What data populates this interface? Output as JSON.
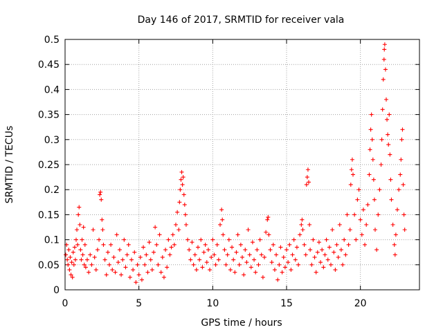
{
  "chart_data": {
    "type": "scatter",
    "title": "Day 146 of 2017, SRMTID for receiver vala",
    "xlabel": "GPS time / hours",
    "ylabel": "SRMTID / TECUs",
    "xlim": [
      0,
      24
    ],
    "ylim": [
      0,
      0.5
    ],
    "x_ticks": [
      0,
      5,
      10,
      15,
      20
    ],
    "x_tick_labels": [
      "0",
      "5",
      "10",
      "15",
      "20"
    ],
    "y_ticks": [
      0,
      0.05,
      0.1,
      0.15,
      0.2,
      0.25,
      0.3,
      0.35,
      0.4,
      0.45,
      0.5
    ],
    "y_tick_labels": [
      "0",
      "0.05",
      "0.1",
      "0.15",
      "0.2",
      "0.25",
      "0.3",
      "0.35",
      "0.4",
      "0.45",
      "0.5"
    ],
    "grid": true,
    "marker": "+",
    "color": "#ff0000",
    "series": [
      {
        "name": "SRMTID",
        "points": [
          [
            0.05,
            0.07
          ],
          [
            0.1,
            0.09
          ],
          [
            0.15,
            0.06
          ],
          [
            0.2,
            0.05
          ],
          [
            0.25,
            0.08
          ],
          [
            0.3,
            0.04
          ],
          [
            0.35,
            0.065
          ],
          [
            0.4,
            0.03
          ],
          [
            0.45,
            0.055
          ],
          [
            0.5,
            0.025
          ],
          [
            0.55,
            0.075
          ],
          [
            0.6,
            0.05
          ],
          [
            0.65,
            0.085
          ],
          [
            0.7,
            0.06
          ],
          [
            0.75,
            0.1
          ],
          [
            0.8,
            0.12
          ],
          [
            0.85,
            0.09
          ],
          [
            0.9,
            0.15
          ],
          [
            0.95,
            0.165
          ],
          [
            1.0,
            0.13
          ],
          [
            1.05,
            0.08
          ],
          [
            1.1,
            0.06
          ],
          [
            1.15,
            0.1
          ],
          [
            1.2,
            0.07
          ],
          [
            1.25,
            0.125
          ],
          [
            1.3,
            0.05
          ],
          [
            1.35,
            0.09
          ],
          [
            1.4,
            0.045
          ],
          [
            1.5,
            0.06
          ],
          [
            1.6,
            0.035
          ],
          [
            1.7,
            0.07
          ],
          [
            1.8,
            0.05
          ],
          [
            1.9,
            0.12
          ],
          [
            2.0,
            0.065
          ],
          [
            2.1,
            0.04
          ],
          [
            2.2,
            0.08
          ],
          [
            2.3,
            0.1
          ],
          [
            2.35,
            0.19
          ],
          [
            2.4,
            0.195
          ],
          [
            2.45,
            0.18
          ],
          [
            2.5,
            0.14
          ],
          [
            2.55,
            0.12
          ],
          [
            2.6,
            0.09
          ],
          [
            2.7,
            0.06
          ],
          [
            2.8,
            0.03
          ],
          [
            2.9,
            0.075
          ],
          [
            3.0,
            0.05
          ],
          [
            3.1,
            0.09
          ],
          [
            3.2,
            0.04
          ],
          [
            3.3,
            0.065
          ],
          [
            3.4,
            0.035
          ],
          [
            3.5,
            0.11
          ],
          [
            3.6,
            0.055
          ],
          [
            3.7,
            0.08
          ],
          [
            3.8,
            0.03
          ],
          [
            3.9,
            0.06
          ],
          [
            4.0,
            0.1
          ],
          [
            4.1,
            0.045
          ],
          [
            4.2,
            0.07
          ],
          [
            4.3,
            0.09
          ],
          [
            4.4,
            0.025
          ],
          [
            4.5,
            0.06
          ],
          [
            4.6,
            0.04
          ],
          [
            4.7,
            0.075
          ],
          [
            4.8,
            0.015
          ],
          [
            4.9,
            0.05
          ],
          [
            5.0,
            0.03
          ],
          [
            5.1,
            0.065
          ],
          [
            5.2,
            0.02
          ],
          [
            5.3,
            0.085
          ],
          [
            5.4,
            0.05
          ],
          [
            5.5,
            0.07
          ],
          [
            5.6,
            0.035
          ],
          [
            5.7,
            0.095
          ],
          [
            5.8,
            0.06
          ],
          [
            5.9,
            0.04
          ],
          [
            6.0,
            0.075
          ],
          [
            6.1,
            0.125
          ],
          [
            6.2,
            0.09
          ],
          [
            6.3,
            0.05
          ],
          [
            6.4,
            0.11
          ],
          [
            6.5,
            0.035
          ],
          [
            6.6,
            0.065
          ],
          [
            6.7,
            0.025
          ],
          [
            6.8,
            0.08
          ],
          [
            6.9,
            0.045
          ],
          [
            7.0,
            0.1
          ],
          [
            7.1,
            0.07
          ],
          [
            7.2,
            0.085
          ],
          [
            7.3,
            0.11
          ],
          [
            7.4,
            0.09
          ],
          [
            7.5,
            0.13
          ],
          [
            7.6,
            0.155
          ],
          [
            7.7,
            0.12
          ],
          [
            7.75,
            0.175
          ],
          [
            7.8,
            0.2
          ],
          [
            7.85,
            0.22
          ],
          [
            7.9,
            0.235
          ],
          [
            7.95,
            0.21
          ],
          [
            8.0,
            0.225
          ],
          [
            8.05,
            0.19
          ],
          [
            8.1,
            0.17
          ],
          [
            8.15,
            0.15
          ],
          [
            8.2,
            0.13
          ],
          [
            8.3,
            0.1
          ],
          [
            8.4,
            0.08
          ],
          [
            8.5,
            0.06
          ],
          [
            8.6,
            0.095
          ],
          [
            8.7,
            0.05
          ],
          [
            8.8,
            0.07
          ],
          [
            8.9,
            0.04
          ],
          [
            9.0,
            0.085
          ],
          [
            9.1,
            0.06
          ],
          [
            9.2,
            0.1
          ],
          [
            9.3,
            0.045
          ],
          [
            9.4,
            0.075
          ],
          [
            9.5,
            0.09
          ],
          [
            9.6,
            0.055
          ],
          [
            9.7,
            0.08
          ],
          [
            9.8,
            0.04
          ],
          [
            9.9,
            0.065
          ],
          [
            10.0,
            0.1
          ],
          [
            10.1,
            0.07
          ],
          [
            10.2,
            0.05
          ],
          [
            10.3,
            0.09
          ],
          [
            10.4,
            0.06
          ],
          [
            10.5,
            0.13
          ],
          [
            10.6,
            0.16
          ],
          [
            10.65,
            0.14
          ],
          [
            10.7,
            0.11
          ],
          [
            10.8,
            0.08
          ],
          [
            10.9,
            0.05
          ],
          [
            11.0,
            0.07
          ],
          [
            11.1,
            0.1
          ],
          [
            11.2,
            0.04
          ],
          [
            11.3,
            0.085
          ],
          [
            11.4,
            0.06
          ],
          [
            11.5,
            0.035
          ],
          [
            11.6,
            0.075
          ],
          [
            11.7,
            0.11
          ],
          [
            11.8,
            0.05
          ],
          [
            11.9,
            0.09
          ],
          [
            12.0,
            0.065
          ],
          [
            12.1,
            0.03
          ],
          [
            12.2,
            0.08
          ],
          [
            12.3,
            0.055
          ],
          [
            12.4,
            0.12
          ],
          [
            12.5,
            0.07
          ],
          [
            12.6,
            0.045
          ],
          [
            12.7,
            0.095
          ],
          [
            12.8,
            0.06
          ],
          [
            12.9,
            0.035
          ],
          [
            13.0,
            0.08
          ],
          [
            13.1,
            0.05
          ],
          [
            13.2,
            0.1
          ],
          [
            13.3,
            0.07
          ],
          [
            13.4,
            0.025
          ],
          [
            13.5,
            0.065
          ],
          [
            13.6,
            0.115
          ],
          [
            13.7,
            0.14
          ],
          [
            13.75,
            0.145
          ],
          [
            13.8,
            0.11
          ],
          [
            13.9,
            0.08
          ],
          [
            14.0,
            0.055
          ],
          [
            14.1,
            0.09
          ],
          [
            14.2,
            0.04
          ],
          [
            14.3,
            0.07
          ],
          [
            14.4,
            0.02
          ],
          [
            14.5,
            0.05
          ],
          [
            14.6,
            0.085
          ],
          [
            14.7,
            0.035
          ],
          [
            14.8,
            0.065
          ],
          [
            14.9,
            0.045
          ],
          [
            15.0,
            0.08
          ],
          [
            15.1,
            0.055
          ],
          [
            15.2,
            0.09
          ],
          [
            15.3,
            0.04
          ],
          [
            15.4,
            0.07
          ],
          [
            15.5,
            0.1
          ],
          [
            15.6,
            0.06
          ],
          [
            15.7,
            0.085
          ],
          [
            15.8,
            0.05
          ],
          [
            15.9,
            0.11
          ],
          [
            16.0,
            0.13
          ],
          [
            16.05,
            0.14
          ],
          [
            16.1,
            0.12
          ],
          [
            16.2,
            0.09
          ],
          [
            16.3,
            0.07
          ],
          [
            16.35,
            0.21
          ],
          [
            16.4,
            0.225
          ],
          [
            16.45,
            0.24
          ],
          [
            16.5,
            0.215
          ],
          [
            16.55,
            0.13
          ],
          [
            16.6,
            0.08
          ],
          [
            16.7,
            0.05
          ],
          [
            16.8,
            0.1
          ],
          [
            16.9,
            0.065
          ],
          [
            17.0,
            0.035
          ],
          [
            17.1,
            0.075
          ],
          [
            17.2,
            0.095
          ],
          [
            17.3,
            0.055
          ],
          [
            17.4,
            0.08
          ],
          [
            17.5,
            0.045
          ],
          [
            17.6,
            0.07
          ],
          [
            17.7,
            0.1
          ],
          [
            17.8,
            0.06
          ],
          [
            17.9,
            0.085
          ],
          [
            18.0,
            0.05
          ],
          [
            18.1,
            0.12
          ],
          [
            18.2,
            0.075
          ],
          [
            18.3,
            0.04
          ],
          [
            18.4,
            0.09
          ],
          [
            18.5,
            0.065
          ],
          [
            18.6,
            0.13
          ],
          [
            18.7,
            0.08
          ],
          [
            18.8,
            0.05
          ],
          [
            18.9,
            0.1
          ],
          [
            19.0,
            0.07
          ],
          [
            19.1,
            0.15
          ],
          [
            19.2,
            0.09
          ],
          [
            19.3,
            0.12
          ],
          [
            19.35,
            0.21
          ],
          [
            19.4,
            0.24
          ],
          [
            19.45,
            0.26
          ],
          [
            19.5,
            0.23
          ],
          [
            19.6,
            0.15
          ],
          [
            19.7,
            0.1
          ],
          [
            19.8,
            0.18
          ],
          [
            19.9,
            0.2
          ],
          [
            20.0,
            0.14
          ],
          [
            20.1,
            0.11
          ],
          [
            20.2,
            0.16
          ],
          [
            20.3,
            0.09
          ],
          [
            20.4,
            0.13
          ],
          [
            20.5,
            0.17
          ],
          [
            20.6,
            0.23
          ],
          [
            20.65,
            0.28
          ],
          [
            20.7,
            0.32
          ],
          [
            20.75,
            0.35
          ],
          [
            20.8,
            0.3
          ],
          [
            20.85,
            0.26
          ],
          [
            20.9,
            0.22
          ],
          [
            20.95,
            0.18
          ],
          [
            21.0,
            0.12
          ],
          [
            21.1,
            0.08
          ],
          [
            21.2,
            0.15
          ],
          [
            21.3,
            0.2
          ],
          [
            21.4,
            0.25
          ],
          [
            21.45,
            0.3
          ],
          [
            21.5,
            0.36
          ],
          [
            21.55,
            0.42
          ],
          [
            21.6,
            0.46
          ],
          [
            21.62,
            0.48
          ],
          [
            21.65,
            0.49
          ],
          [
            21.7,
            0.44
          ],
          [
            21.75,
            0.38
          ],
          [
            21.8,
            0.34
          ],
          [
            21.85,
            0.31
          ],
          [
            21.9,
            0.29
          ],
          [
            21.95,
            0.35
          ],
          [
            22.0,
            0.27
          ],
          [
            22.05,
            0.22
          ],
          [
            22.1,
            0.18
          ],
          [
            22.2,
            0.13
          ],
          [
            22.3,
            0.09
          ],
          [
            22.35,
            0.07
          ],
          [
            22.4,
            0.11
          ],
          [
            22.5,
            0.16
          ],
          [
            22.6,
            0.2
          ],
          [
            22.7,
            0.23
          ],
          [
            22.75,
            0.26
          ],
          [
            22.8,
            0.3
          ],
          [
            22.85,
            0.32
          ],
          [
            22.9,
            0.21
          ],
          [
            22.95,
            0.15
          ],
          [
            23.0,
            0.12
          ]
        ]
      }
    ]
  }
}
